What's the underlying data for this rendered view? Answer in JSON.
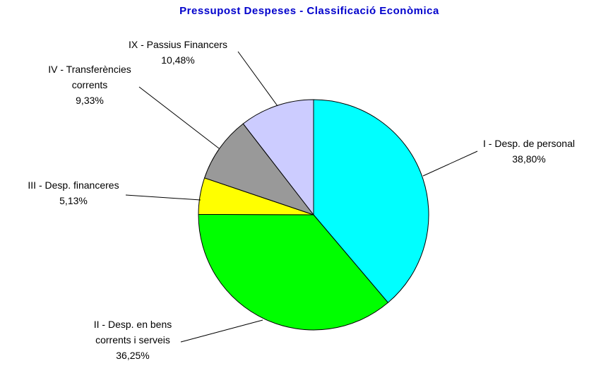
{
  "chart_data": {
    "type": "pie",
    "title": "Pressupost Despeses - Classificació Econòmica",
    "title_color": "#0000cc",
    "start_angle_deg": 0,
    "direction": "clockwise",
    "slices": [
      {
        "name_lines": [
          "I - Desp. de personal"
        ],
        "value_label": "38,80%",
        "value": 38.8,
        "color": "#00ffff"
      },
      {
        "name_lines": [
          "II - Desp. en bens",
          "corrents i serveis"
        ],
        "value_label": "36,25%",
        "value": 36.25,
        "color": "#00ff00"
      },
      {
        "name_lines": [
          "III - Desp. financeres"
        ],
        "value_label": "5,13%",
        "value": 5.13,
        "color": "#ffff00"
      },
      {
        "name_lines": [
          "IV - Transferències",
          "corrents"
        ],
        "value_label": "9,33%",
        "value": 9.33,
        "color": "#999999"
      },
      {
        "name_lines": [
          "IX - Passius Financers"
        ],
        "value_label": "10,48%",
        "value": 10.48,
        "color": "#ccccff"
      }
    ]
  }
}
